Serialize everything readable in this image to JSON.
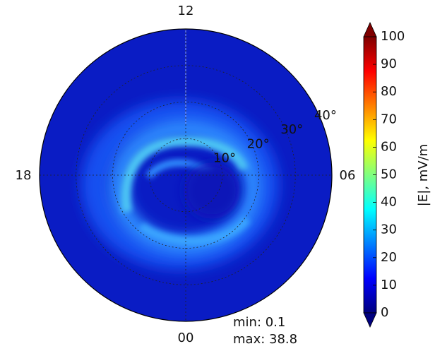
{
  "chart_data": {
    "type": "polar-map",
    "theta_labels": [
      "12",
      "06",
      "00",
      "18"
    ],
    "rlim": [
      0,
      40
    ],
    "rticks": [
      {
        "value": 10,
        "label": "10°"
      },
      {
        "value": 20,
        "label": "20°"
      },
      {
        "value": 30,
        "label": "30°"
      },
      {
        "value": 40,
        "label": "40°"
      }
    ],
    "annotations": [
      "min: 0.1",
      "max: 38.8"
    ],
    "colorbar": {
      "label": "|E|, mV/m",
      "clim": [
        0,
        100
      ],
      "ticks": [
        0,
        10,
        20,
        30,
        40,
        50,
        60,
        70,
        80,
        90,
        100
      ],
      "colormap": "jet",
      "extend": "both"
    }
  }
}
